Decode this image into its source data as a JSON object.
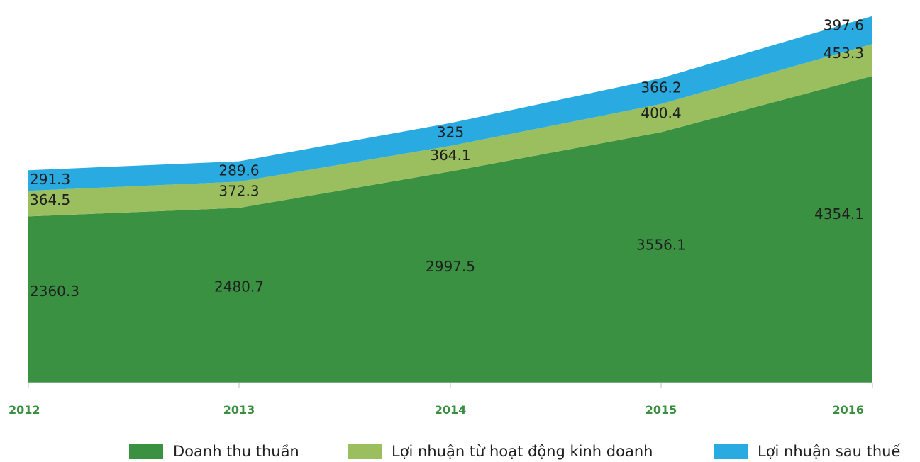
{
  "chart_data": {
    "type": "area",
    "stacked": true,
    "categories": [
      "2012",
      "2013",
      "2014",
      "2015",
      "2016"
    ],
    "series": [
      {
        "name": "Doanh thu thuần",
        "values": [
          2360.3,
          2480.7,
          2997.5,
          3556.1,
          4354.1
        ],
        "color": "#3a9142"
      },
      {
        "name": "Lợi nhuận từ hoạt động kinh doanh",
        "values": [
          364.5,
          372.3,
          364.1,
          400.4,
          453.3
        ],
        "color": "#9bbf5f"
      },
      {
        "name": "Lợi nhuận sau thuế",
        "values": [
          291.3,
          289.6,
          325,
          366.2,
          397.6
        ],
        "color": "#29abe2"
      }
    ],
    "value_labels": [
      [
        "2360.3",
        "2480.7",
        "2997.5",
        "3556.1",
        "4354.1"
      ],
      [
        "364.5",
        "372.3",
        "364.1",
        "400.4",
        "453.3"
      ],
      [
        "291.3",
        "289.6",
        "325",
        "366.2",
        "397.6"
      ]
    ],
    "ylim": [
      0,
      5300
    ],
    "grid": false,
    "legend_position": "bottom",
    "tick_color": "#3a8f3f"
  }
}
